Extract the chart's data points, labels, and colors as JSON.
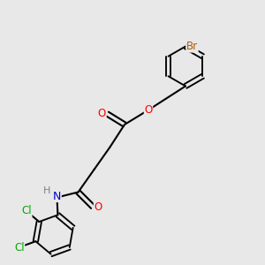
{
  "background_color": "#e8e8e8",
  "bond_color": "#000000",
  "bond_lw": 1.5,
  "atom_colors": {
    "O": "#ff0000",
    "N": "#0000cd",
    "Cl": "#00aa00",
    "Br": "#b35900",
    "C": "#000000",
    "H": "#7f7f7f"
  },
  "font_size": 8.5,
  "figsize": [
    3.0,
    3.0
  ],
  "dpi": 100
}
